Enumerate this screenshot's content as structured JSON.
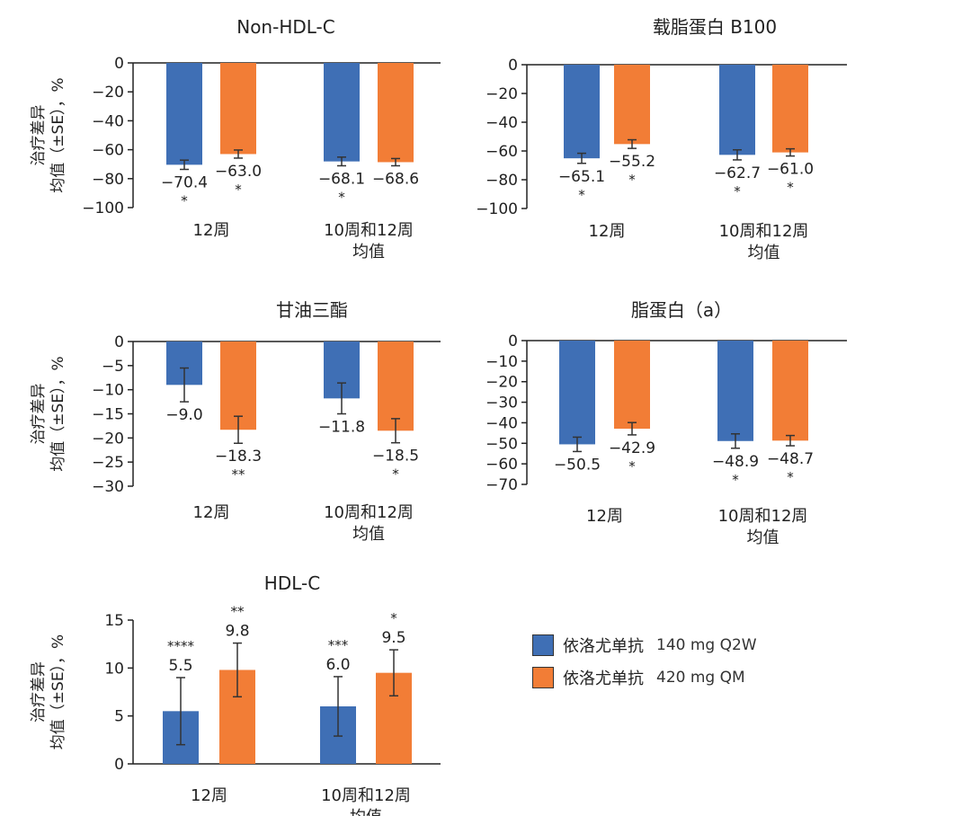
{
  "colors": {
    "blue": "#3f6fb5",
    "orange": "#f27d36",
    "axis": "#222222"
  },
  "y_axis_label_line1": "治疗差异",
  "y_axis_label_line2": "均值（±SE），%",
  "legend": [
    {
      "name": "依洛尤单抗",
      "dose": "140 mg Q2W",
      "color": "#3f6fb5"
    },
    {
      "name": "依洛尤单抗",
      "dose": "420 mg QM",
      "color": "#f27d36"
    }
  ],
  "chart_data": [
    {
      "type": "bar",
      "title": "Non-HDL-C",
      "ylim": [
        -100,
        0
      ],
      "yticks": [
        0,
        -20,
        -40,
        -60,
        -80,
        -100
      ],
      "groups": [
        {
          "label_lines": [
            "12周"
          ],
          "bars": [
            {
              "value": -70.4,
              "label": "−70.4",
              "sig": "*",
              "se": 3.2
            },
            {
              "value": -63.0,
              "label": "−63.0",
              "sig": "*",
              "se": 2.8
            }
          ]
        },
        {
          "label_lines": [
            "10周和12周",
            "均值"
          ],
          "bars": [
            {
              "value": -68.1,
              "label": "−68.1",
              "sig": "*",
              "se": 3.0
            },
            {
              "value": -68.6,
              "label": "−68.6",
              "sig": "",
              "se": 2.5
            }
          ]
        }
      ]
    },
    {
      "type": "bar",
      "title": "载脂蛋白 B100",
      "ylim": [
        -100,
        0
      ],
      "yticks": [
        0,
        -20,
        -40,
        -60,
        -80,
        -100
      ],
      "groups": [
        {
          "label_lines": [
            "12周"
          ],
          "bars": [
            {
              "value": -65.1,
              "label": "−65.1",
              "sig": "*",
              "se": 3.5
            },
            {
              "value": -55.2,
              "label": "−55.2",
              "sig": "*",
              "se": 3.0
            }
          ]
        },
        {
          "label_lines": [
            "10周和12周",
            "均值"
          ],
          "bars": [
            {
              "value": -62.7,
              "label": "−62.7",
              "sig": "*",
              "se": 3.5
            },
            {
              "value": -61.0,
              "label": "−61.0",
              "sig": "*",
              "se": 2.5
            }
          ]
        }
      ]
    },
    {
      "type": "bar",
      "title": "甘油三酯",
      "ylim": [
        -30,
        0
      ],
      "yticks": [
        0,
        -5,
        -10,
        -15,
        -20,
        -25,
        -30
      ],
      "groups": [
        {
          "label_lines": [
            "12周"
          ],
          "bars": [
            {
              "value": -9.0,
              "label": "−9.0",
              "sig": "",
              "se": 3.5
            },
            {
              "value": -18.3,
              "label": "−18.3",
              "sig": "**",
              "se": 2.8
            }
          ]
        },
        {
          "label_lines": [
            "10周和12周",
            "均值"
          ],
          "bars": [
            {
              "value": -11.8,
              "label": "−11.8",
              "sig": "",
              "se": 3.2
            },
            {
              "value": -18.5,
              "label": "−18.5",
              "sig": "*",
              "se": 2.5
            }
          ]
        }
      ]
    },
    {
      "type": "bar",
      "title": "脂蛋白（a）",
      "ylim": [
        -70,
        0
      ],
      "yticks": [
        0,
        -10,
        -20,
        -30,
        -40,
        -50,
        -60,
        -70
      ],
      "groups": [
        {
          "label_lines": [
            "12周"
          ],
          "bars": [
            {
              "value": -50.5,
              "label": "−50.5",
              "sig": "",
              "se": 3.5
            },
            {
              "value": -42.9,
              "label": "−42.9",
              "sig": "*",
              "se": 3.0
            }
          ]
        },
        {
          "label_lines": [
            "10周和12周",
            "均值"
          ],
          "bars": [
            {
              "value": -48.9,
              "label": "−48.9",
              "sig": "*",
              "se": 3.5
            },
            {
              "value": -48.7,
              "label": "−48.7",
              "sig": "*",
              "se": 2.5
            }
          ]
        }
      ]
    },
    {
      "type": "bar",
      "title": "HDL-C",
      "ylim": [
        0,
        15
      ],
      "yticks": [
        15,
        10,
        5,
        0
      ],
      "groups": [
        {
          "label_lines": [
            "12周"
          ],
          "bars": [
            {
              "value": 5.5,
              "label": "5.5",
              "sig": "****",
              "se": 3.5
            },
            {
              "value": 9.8,
              "label": "9.8",
              "sig": "**",
              "se": 2.8
            }
          ]
        },
        {
          "label_lines": [
            "10周和12周",
            "均值"
          ],
          "bars": [
            {
              "value": 6.0,
              "label": "6.0",
              "sig": "***",
              "se": 3.1
            },
            {
              "value": 9.5,
              "label": "9.5",
              "sig": "*",
              "se": 2.4
            }
          ]
        }
      ]
    }
  ]
}
